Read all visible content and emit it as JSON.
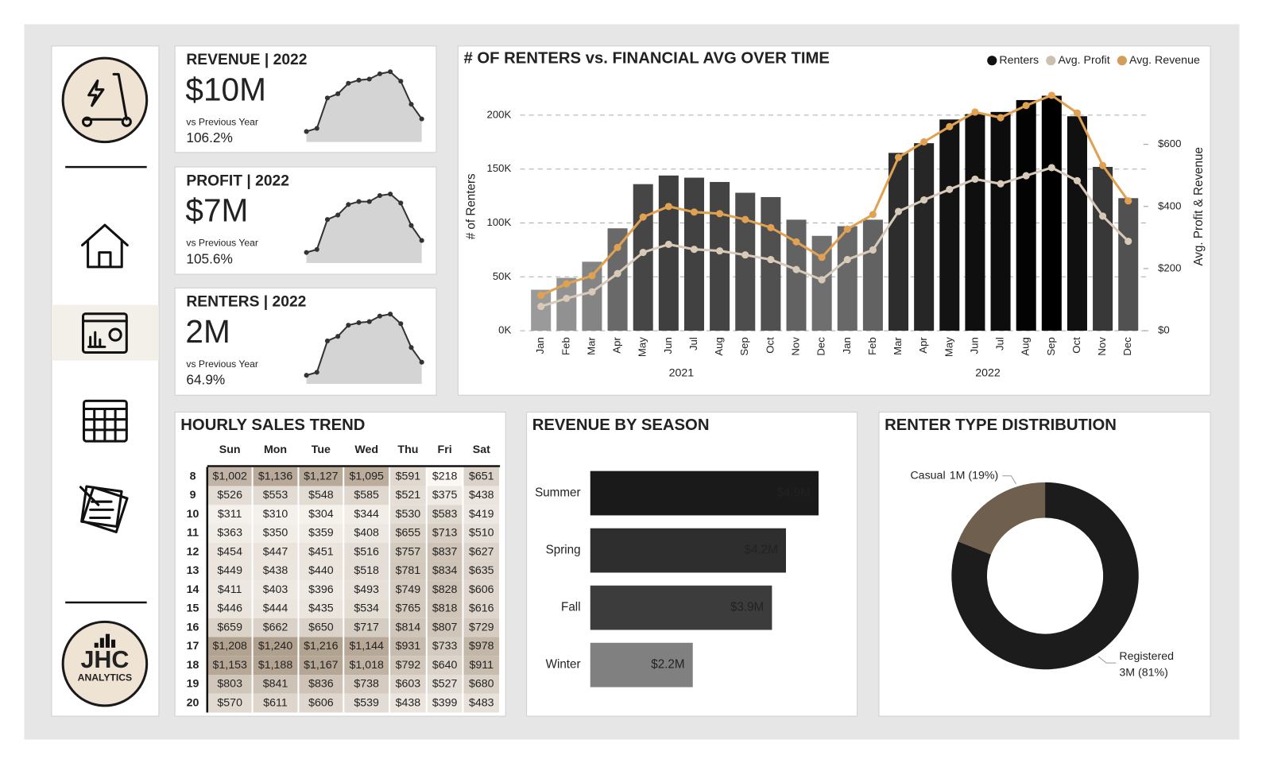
{
  "sidebar": {
    "logo_text": "JHC",
    "logo_subtext": "ANALYTICS"
  },
  "kpis": [
    {
      "title": "REVENUE | 2022",
      "value": "$10M",
      "comparison_label": "vs Previous Year",
      "change": "106.2%",
      "sparkline": {
        "type": "area",
        "values": [
          450000,
          480000,
          770000,
          810000,
          910000,
          940000,
          950000,
          1000000,
          1020000,
          930000,
          710000,
          570000
        ],
        "ylim": [
          350000,
          1050000
        ]
      }
    },
    {
      "title": "PROFIT | 2022",
      "value": "$7M",
      "comparison_label": "vs Previous Year",
      "change": "105.6%",
      "sparkline": {
        "type": "area",
        "values": [
          320000,
          340000,
          540000,
          570000,
          640000,
          660000,
          660000,
          700000,
          710000,
          650000,
          500000,
          400000
        ],
        "ylim": [
          250000,
          740000
        ]
      }
    },
    {
      "title": "RENTERS | 2022",
      "value": "2M",
      "comparison_label": "vs Previous Year",
      "change": "64.9%",
      "sparkline": {
        "type": "area",
        "values": [
          97000,
          103000,
          165000,
          174000,
          196000,
          201000,
          203000,
          214000,
          218000,
          199000,
          152000,
          123000
        ],
        "ylim": [
          80000,
          225000
        ]
      }
    }
  ],
  "chart_data": [
    {
      "type": "combo",
      "title": "# OF RENTERS vs. FINANCIAL AVG OVER TIME",
      "categories": [
        "Jan",
        "Feb",
        "Mar",
        "Apr",
        "May",
        "Jun",
        "Jul",
        "Aug",
        "Sep",
        "Oct",
        "Nov",
        "Dec",
        "Jan",
        "Feb",
        "Mar",
        "Apr",
        "May",
        "Jun",
        "Jul",
        "Aug",
        "Sep",
        "Oct",
        "Nov",
        "Dec"
      ],
      "x_groups": [
        "2021",
        "2022"
      ],
      "ylabel": "# of Renters",
      "y2label": "Avg. Profit & Revenue",
      "ylim": [
        0,
        232000
      ],
      "yticks": [
        {
          "value": 0,
          "label": "0K"
        },
        {
          "value": 50000,
          "label": "50K"
        },
        {
          "value": 100000,
          "label": "100K"
        },
        {
          "value": 150000,
          "label": "150K"
        },
        {
          "value": 200000,
          "label": "200K"
        }
      ],
      "y2lim": [
        0,
        805
      ],
      "y2ticks": [
        {
          "value": 0,
          "label": "$0"
        },
        {
          "value": 200,
          "label": "$200"
        },
        {
          "value": 400,
          "label": "$400"
        },
        {
          "value": 600,
          "label": "$600"
        }
      ],
      "grid": true,
      "legend": "top-right",
      "series": [
        {
          "name": "Renters",
          "type": "bar",
          "color": "#111111",
          "color_scale": [
            "#9a9a9a",
            "#000000"
          ],
          "values": [
            38000,
            49000,
            64000,
            95000,
            136000,
            144000,
            142000,
            138000,
            128000,
            124000,
            103000,
            88000,
            97000,
            103000,
            165000,
            174000,
            196000,
            201000,
            203000,
            214000,
            218000,
            199000,
            152000,
            123000
          ]
        },
        {
          "name": "Avg. Profit",
          "type": "line",
          "axis": "y2",
          "color": "#d8cab8",
          "values": [
            78,
            104,
            125,
            184,
            252,
            278,
            262,
            257,
            244,
            229,
            197,
            164,
            229,
            260,
            384,
            421,
            455,
            488,
            473,
            499,
            525,
            483,
            369,
            288
          ]
        },
        {
          "name": "Avg. Revenue",
          "type": "line",
          "axis": "y2",
          "color": "#e0a252",
          "values": [
            114,
            151,
            177,
            268,
            366,
            400,
            382,
            377,
            358,
            332,
            286,
            236,
            327,
            374,
            558,
            608,
            657,
            704,
            686,
            725,
            758,
            701,
            532,
            418
          ]
        }
      ]
    },
    {
      "type": "bar",
      "orientation": "horizontal",
      "title": "REVENUE BY SEASON",
      "categories": [
        "Summer",
        "Spring",
        "Fall",
        "Winter"
      ],
      "values": [
        4900000,
        4200000,
        3900000,
        2200000
      ],
      "value_labels": [
        "$4.9M",
        "$4.2M",
        "$3.9M",
        "$2.2M"
      ],
      "colors": [
        "#1a1a1a",
        "#2e2e2e",
        "#3c3c3c",
        "#808080"
      ],
      "xlim": [
        0,
        5400000
      ]
    },
    {
      "type": "donut",
      "title": "RENTER TYPE DISTRIBUTION",
      "categories": [
        "Registered",
        "Casual"
      ],
      "values": [
        81,
        19
      ],
      "value_labels": [
        "3M (81%)",
        "1M (19%)"
      ],
      "colors": [
        "#1c1c1c",
        "#6e5f4e"
      ]
    }
  ],
  "hourly_table": {
    "title": "HOURLY SALES TREND",
    "columns": [
      "Sun",
      "Mon",
      "Tue",
      "Wed",
      "Thu",
      "Fri",
      "Sat"
    ],
    "heat_colors": [
      "#fbf8f4",
      "#b0a08e"
    ],
    "rows": [
      {
        "hour": 8,
        "cells": [
          "$1,002",
          "$1,136",
          "$1,127",
          "$1,095",
          "$591",
          "$218",
          "$651"
        ]
      },
      {
        "hour": 9,
        "cells": [
          "$526",
          "$553",
          "$548",
          "$585",
          "$521",
          "$375",
          "$438"
        ]
      },
      {
        "hour": 10,
        "cells": [
          "$311",
          "$310",
          "$304",
          "$344",
          "$530",
          "$583",
          "$419"
        ]
      },
      {
        "hour": 11,
        "cells": [
          "$363",
          "$350",
          "$359",
          "$408",
          "$655",
          "$713",
          "$510"
        ]
      },
      {
        "hour": 12,
        "cells": [
          "$454",
          "$447",
          "$451",
          "$516",
          "$757",
          "$837",
          "$627"
        ]
      },
      {
        "hour": 13,
        "cells": [
          "$449",
          "$438",
          "$440",
          "$518",
          "$781",
          "$834",
          "$635"
        ]
      },
      {
        "hour": 14,
        "cells": [
          "$411",
          "$403",
          "$396",
          "$493",
          "$749",
          "$828",
          "$606"
        ]
      },
      {
        "hour": 15,
        "cells": [
          "$446",
          "$444",
          "$435",
          "$534",
          "$765",
          "$818",
          "$616"
        ]
      },
      {
        "hour": 16,
        "cells": [
          "$659",
          "$662",
          "$650",
          "$717",
          "$814",
          "$807",
          "$729"
        ]
      },
      {
        "hour": 17,
        "cells": [
          "$1,208",
          "$1,240",
          "$1,216",
          "$1,144",
          "$931",
          "$733",
          "$978"
        ]
      },
      {
        "hour": 18,
        "cells": [
          "$1,153",
          "$1,188",
          "$1,167",
          "$1,018",
          "$792",
          "$640",
          "$911"
        ]
      },
      {
        "hour": 19,
        "cells": [
          "$803",
          "$841",
          "$836",
          "$738",
          "$603",
          "$527",
          "$680"
        ]
      },
      {
        "hour": 20,
        "cells": [
          "$570",
          "$611",
          "$606",
          "$539",
          "$438",
          "$399",
          "$483"
        ]
      }
    ]
  }
}
